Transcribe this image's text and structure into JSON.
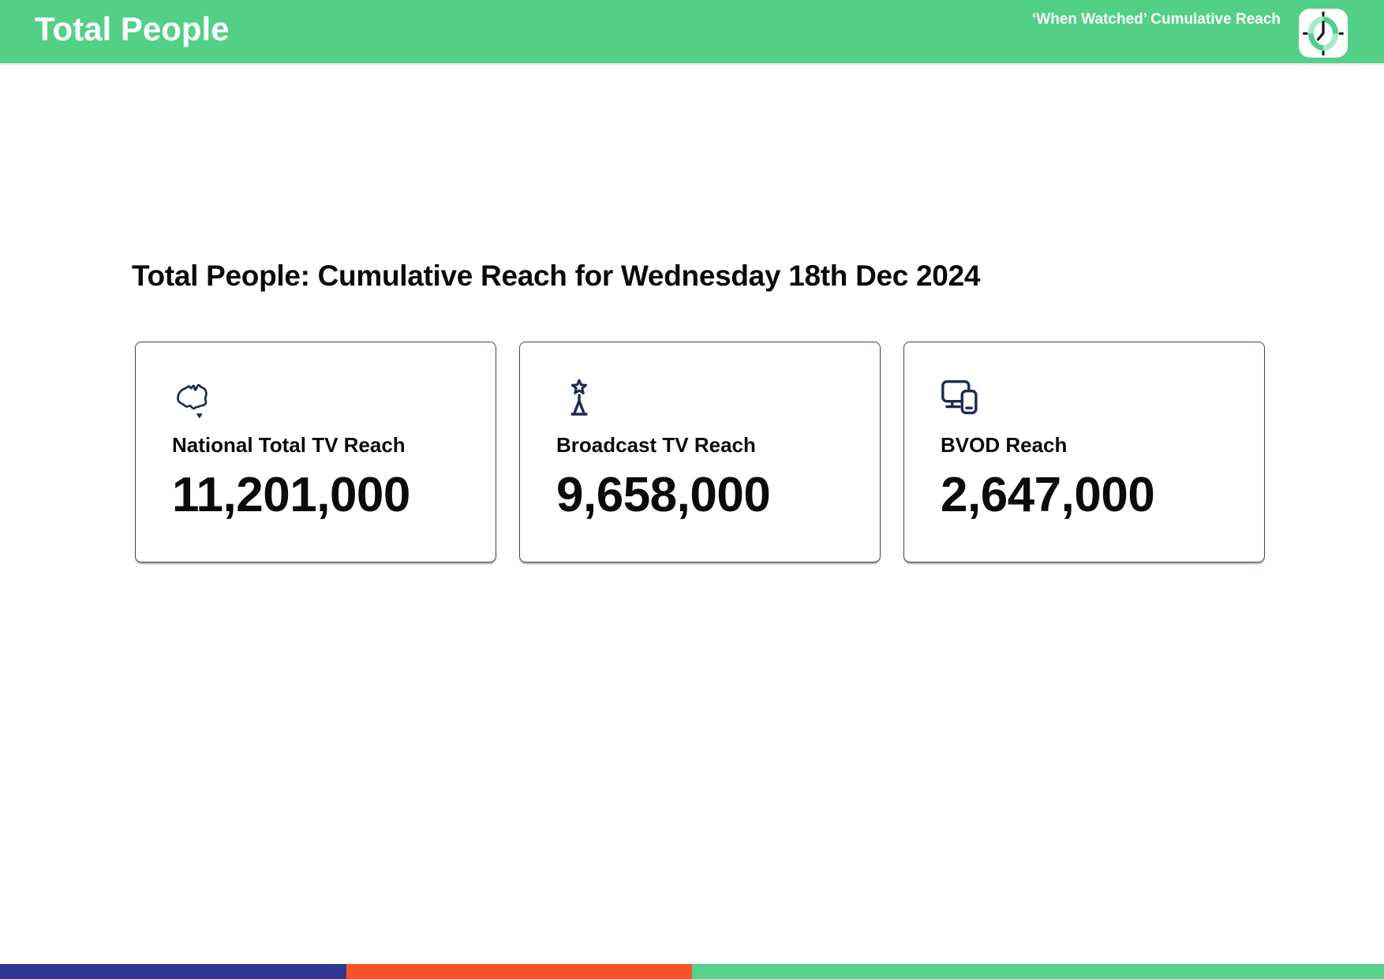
{
  "theme": {
    "header_green": "#52D087",
    "icon_navy": "#1F2C50",
    "card_border": "#3A4963",
    "clock_ring_green": "#4FD08A",
    "clock_ring_light": "#A5EAC8",
    "clock_hands_black": "#101418"
  },
  "header": {
    "title": "Total People",
    "subtitle": "‘When Watched’ Cumulative Reach",
    "logo_icon": "clock-icon"
  },
  "main": {
    "heading": "Total People: Cumulative Reach for Wednesday 18th Dec 2024",
    "cards": [
      {
        "icon": "australia-map-icon",
        "label": "National Total TV Reach",
        "value": "11,201,000"
      },
      {
        "icon": "broadcast-tower-icon",
        "label": "Broadcast TV Reach",
        "value": "9,658,000"
      },
      {
        "icon": "tv-and-phone-icon",
        "label": "BVOD Reach",
        "value": "2,647,000"
      }
    ]
  },
  "footer": {
    "segments": [
      {
        "name": "blue",
        "color": "#2E3792",
        "width_pct": 25
      },
      {
        "name": "orange",
        "color": "#FA5126",
        "width_pct": 25
      },
      {
        "name": "green",
        "color": "#55D18A",
        "width_pct": 50
      }
    ]
  }
}
